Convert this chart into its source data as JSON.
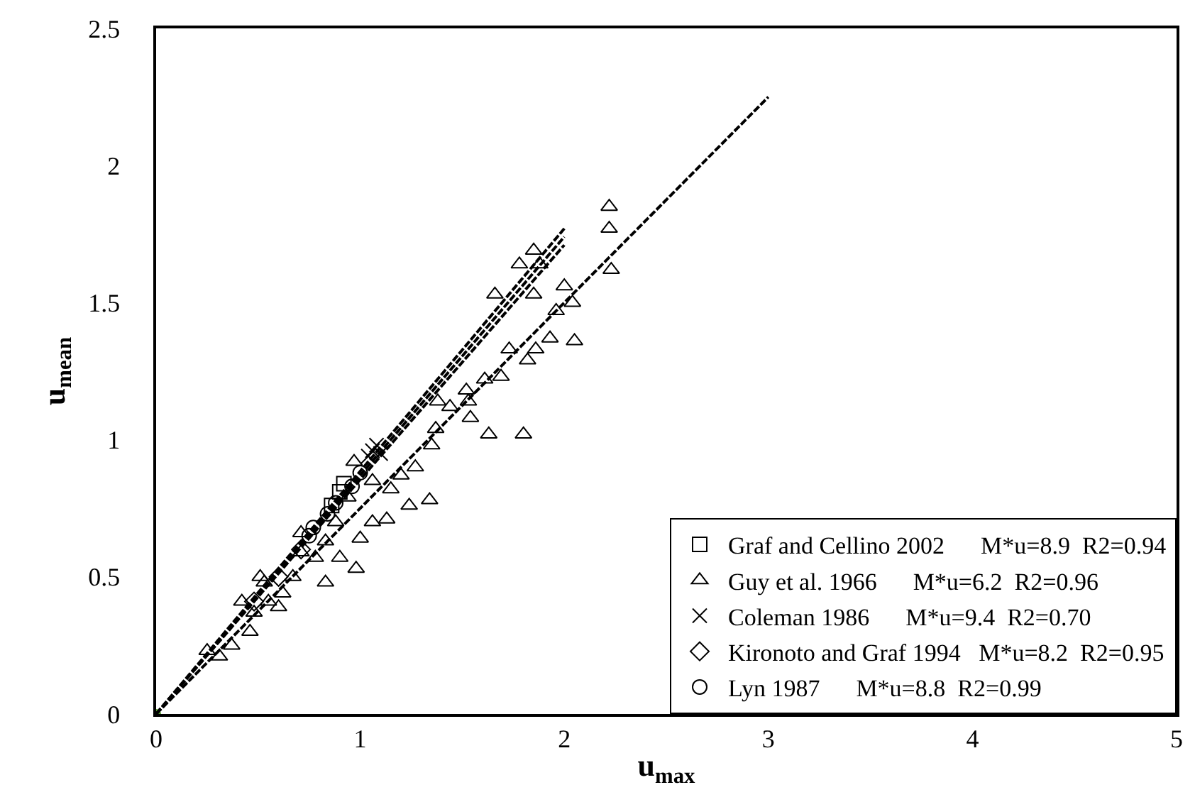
{
  "chart_data": {
    "type": "scatter",
    "xlabel": "u$_{max}$",
    "ylabel": "u$_{mean}$",
    "xlim": [
      0,
      5
    ],
    "ylim": [
      0,
      2.5
    ],
    "xticks": [
      0,
      1,
      2,
      3,
      4,
      5
    ],
    "yticks": [
      0,
      0.5,
      1,
      1.5,
      2,
      2.5
    ],
    "legend": "bottom right",
    "series": [
      {
        "name": "Graf and Cellino 2002      M*u=8.9  R2=0.94",
        "color": "#000000",
        "marker": "square",
        "x": [
          0.9,
          0.92,
          0.86
        ],
        "values": [
          0.81,
          0.84,
          0.76
        ]
      },
      {
        "name": "Guy et al. 1966      M*u=6.2  R2=0.96",
        "color": "#000000",
        "marker": "triangle",
        "x": [
          2.22,
          2.22,
          2.23,
          1.85,
          1.78,
          1.88,
          1.66,
          1.85,
          2.0,
          2.04,
          1.96,
          2.05,
          1.93,
          1.86,
          1.73,
          1.82,
          1.69,
          1.61,
          1.52,
          1.44,
          1.38,
          1.53,
          1.54,
          1.63,
          1.8,
          1.37,
          1.35,
          1.27,
          1.34,
          1.24,
          1.13,
          1.06,
          1.0,
          0.98,
          0.9,
          0.83,
          0.78,
          0.71,
          0.62,
          0.6,
          0.53,
          0.48,
          0.42,
          0.46,
          0.37,
          0.25,
          0.31,
          0.97,
          1.06,
          1.15,
          1.2,
          0.94,
          0.88,
          0.67,
          0.55,
          0.51,
          0.71,
          0.83
        ],
        "values": [
          1.85,
          1.77,
          1.62,
          1.69,
          1.64,
          1.64,
          1.53,
          1.53,
          1.56,
          1.5,
          1.47,
          1.36,
          1.37,
          1.33,
          1.33,
          1.29,
          1.23,
          1.22,
          1.18,
          1.12,
          1.14,
          1.14,
          1.08,
          1.02,
          1.02,
          1.04,
          0.98,
          0.9,
          0.78,
          0.76,
          0.71,
          0.7,
          0.64,
          0.53,
          0.57,
          0.48,
          0.57,
          0.59,
          0.44,
          0.39,
          0.48,
          0.37,
          0.41,
          0.3,
          0.25,
          0.23,
          0.21,
          0.92,
          0.85,
          0.82,
          0.87,
          0.79,
          0.7,
          0.5,
          0.41,
          0.5,
          0.66,
          0.63
        ]
      },
      {
        "name": "Coleman 1986      M*u=9.4  R2=0.70",
        "color": "#000000",
        "marker": "cross",
        "x": [
          1.06,
          1.1,
          1.04,
          1.08
        ],
        "values": [
          0.96,
          0.95,
          0.94,
          0.98
        ]
      },
      {
        "name": "Kironoto and Graf 1994   M*u=8.2  R2=0.95",
        "color": "#000000",
        "marker": "diamond",
        "x": [
          0.6,
          0.48,
          0.71
        ],
        "values": [
          0.5,
          0.41,
          0.6
        ]
      },
      {
        "name": "Lyn 1987      M*u=8.8  R2=0.99",
        "color": "#000000",
        "marker": "circle",
        "x": [
          1.0,
          0.96,
          0.88,
          0.84,
          0.77,
          0.75
        ],
        "values": [
          0.88,
          0.83,
          0.77,
          0.73,
          0.68,
          0.65
        ]
      },
      {
        "color": "#5aa832",
        "marker": "circle",
        "x": [
          0
        ],
        "values": [
          0
        ]
      },
      {
        "type": "line",
        "color": "#000000",
        "line_style": "dashed",
        "marker": "none",
        "x": [
          0,
          3
        ],
        "values": [
          0,
          2.25
        ]
      },
      {
        "type": "line",
        "color": "#000000",
        "line_style": "dashed",
        "marker": "none",
        "x": [
          0,
          2
        ],
        "values": [
          0,
          1.77
        ]
      },
      {
        "type": "line",
        "color": "#000000",
        "line_style": "dashed",
        "marker": "none",
        "x": [
          0,
          2
        ],
        "values": [
          0,
          1.74
        ]
      },
      {
        "type": "line",
        "color": "#000000",
        "line_style": "dashed",
        "marker": "none",
        "x": [
          0,
          2
        ],
        "values": [
          0,
          1.71
        ]
      }
    ]
  }
}
